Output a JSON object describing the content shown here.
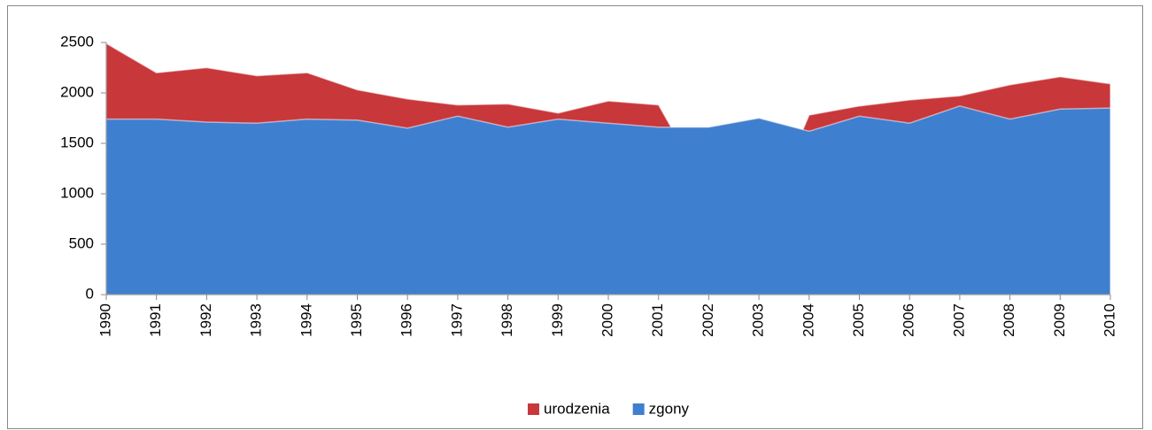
{
  "chart_data": {
    "type": "area",
    "categories": [
      "1990",
      "1991",
      "1992",
      "1993",
      "1994",
      "1995",
      "1996",
      "1997",
      "1998",
      "1999",
      "2000",
      "2001",
      "2002",
      "2003",
      "2004",
      "2005",
      "2006",
      "2007",
      "2008",
      "2009",
      "2010"
    ],
    "series": [
      {
        "name": "urodzenia",
        "color": "#c8373a",
        "values": [
          2490,
          2200,
          2250,
          2170,
          2200,
          2030,
          1940,
          1880,
          1890,
          1800,
          1920,
          1880,
          1000,
          600,
          1780,
          1870,
          1930,
          1970,
          2080,
          2160,
          2090
        ]
      },
      {
        "name": "zgony",
        "color": "#3f7fd0",
        "values": [
          1740,
          1740,
          1710,
          1700,
          1740,
          1730,
          1650,
          1770,
          1660,
          1740,
          1700,
          1660,
          1660,
          1750,
          1620,
          1770,
          1700,
          1870,
          1740,
          1840,
          1850
        ]
      }
    ],
    "ylim": [
      0,
      2500
    ],
    "yticks": [
      0,
      500,
      1000,
      1500,
      2000,
      2500
    ],
    "legend": "bottom"
  }
}
